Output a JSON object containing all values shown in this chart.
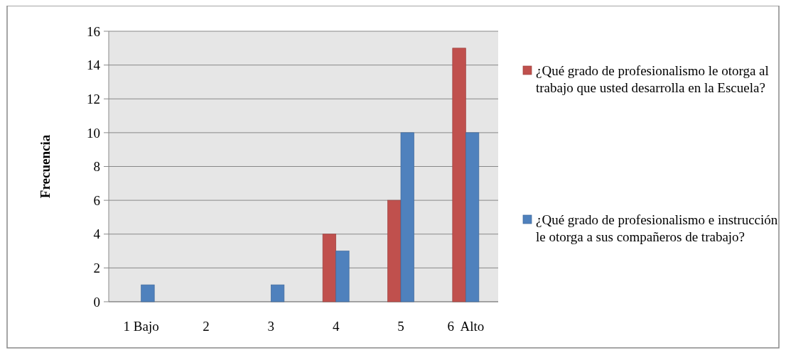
{
  "chart_data": {
    "type": "bar",
    "ylabel": "Frecuencia",
    "categories": [
      "1 Bajo",
      "2",
      "3",
      "4",
      "5",
      "6  Alto"
    ],
    "series": [
      {
        "name": "¿Qué grado de profesionalismo le otorga al trabajo que usted desarrolla en la Escuela?",
        "color": "#c0504d",
        "values": [
          0,
          0,
          0,
          4,
          6,
          15
        ]
      },
      {
        "name": "¿Qué grado de profesionalismo e instrucción le otorga a sus compañeros de trabajo?",
        "color": "#4f81bd",
        "values": [
          1,
          0,
          1,
          3,
          10,
          10
        ]
      }
    ],
    "ylim": [
      0,
      16
    ],
    "yticks": [
      0,
      2,
      4,
      6,
      8,
      10,
      12,
      14,
      16
    ],
    "grid": "y",
    "legend": "right"
  }
}
